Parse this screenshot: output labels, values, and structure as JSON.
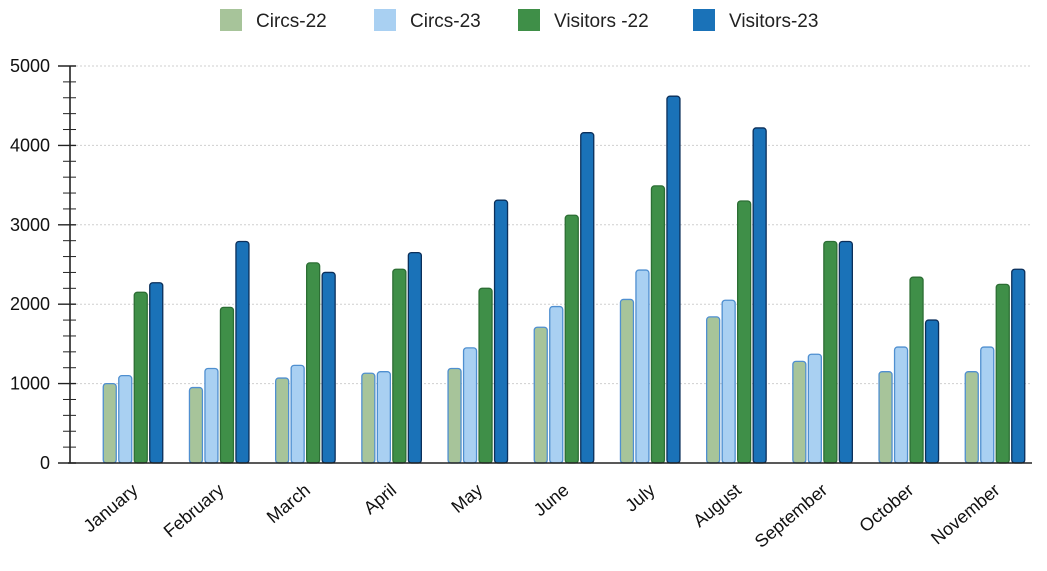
{
  "chart_data": {
    "type": "bar",
    "categories": [
      "January",
      "February",
      "March",
      "April",
      "May",
      "June",
      "July",
      "August",
      "September",
      "October",
      "November"
    ],
    "series": [
      {
        "name": "Circs-22",
        "color": "#a7c49a",
        "stroke": "#4f8fd0",
        "values": [
          1000,
          950,
          1070,
          1130,
          1190,
          1710,
          2060,
          1840,
          1280,
          1150,
          1150
        ]
      },
      {
        "name": "Circs-23",
        "color": "#a9d0f2",
        "stroke": "#4f8fd0",
        "values": [
          1100,
          1190,
          1230,
          1150,
          1450,
          1970,
          2430,
          2050,
          1370,
          1460,
          1460
        ]
      },
      {
        "name": "Visitors -22",
        "color": "#3f8f48",
        "stroke": "#2c6e34",
        "values": [
          2150,
          1960,
          2520,
          2440,
          2200,
          3120,
          3490,
          3300,
          2790,
          2340,
          2250
        ]
      },
      {
        "name": "Visitors-23",
        "color": "#1a72b8",
        "stroke": "#0b2f5a",
        "values": [
          2270,
          2790,
          2400,
          2650,
          3310,
          4160,
          4620,
          4220,
          2790,
          1800,
          2440
        ]
      }
    ],
    "ylim": [
      0,
      5000
    ],
    "yticks": [
      0,
      1000,
      2000,
      3000,
      4000,
      5000
    ],
    "grid": true,
    "legend_position": "top-center"
  }
}
